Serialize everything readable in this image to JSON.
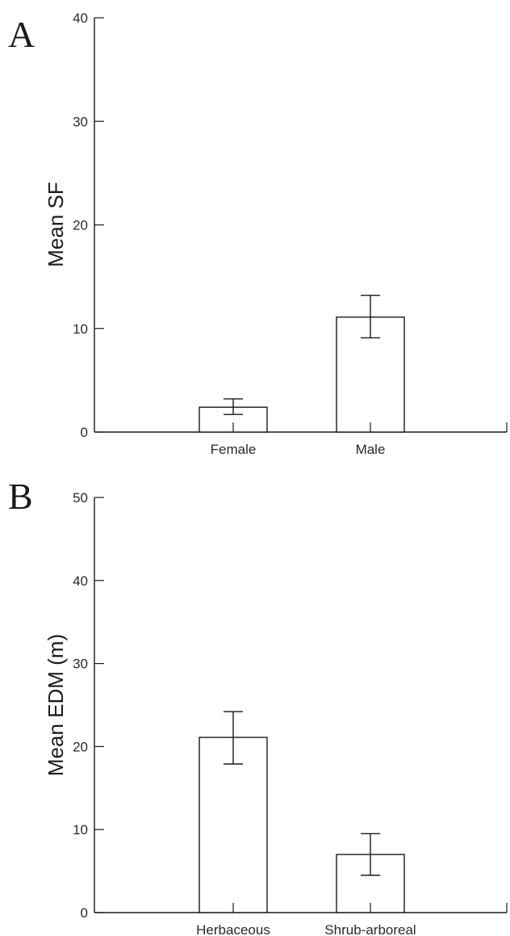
{
  "chart_data": [
    {
      "panel": "A",
      "type": "bar",
      "ylabel": "Mean SF",
      "xlabel": "",
      "ylim": [
        0,
        40
      ],
      "yticks": [
        0,
        10,
        20,
        30,
        40
      ],
      "categories": [
        "Female",
        "Male"
      ],
      "values": [
        2.4,
        11.1
      ],
      "error_low": [
        1.7,
        9.1
      ],
      "error_high": [
        3.2,
        13.2
      ]
    },
    {
      "panel": "B",
      "type": "bar",
      "ylabel": "Mean EDM (m)",
      "xlabel": "",
      "ylim": [
        0,
        50
      ],
      "yticks": [
        0,
        10,
        20,
        30,
        40,
        50
      ],
      "categories": [
        "Herbaceous",
        "Shrub-arboreal"
      ],
      "values": [
        21.1,
        7.0
      ],
      "error_low": [
        17.9,
        4.5
      ],
      "error_high": [
        24.2,
        9.5
      ]
    }
  ]
}
